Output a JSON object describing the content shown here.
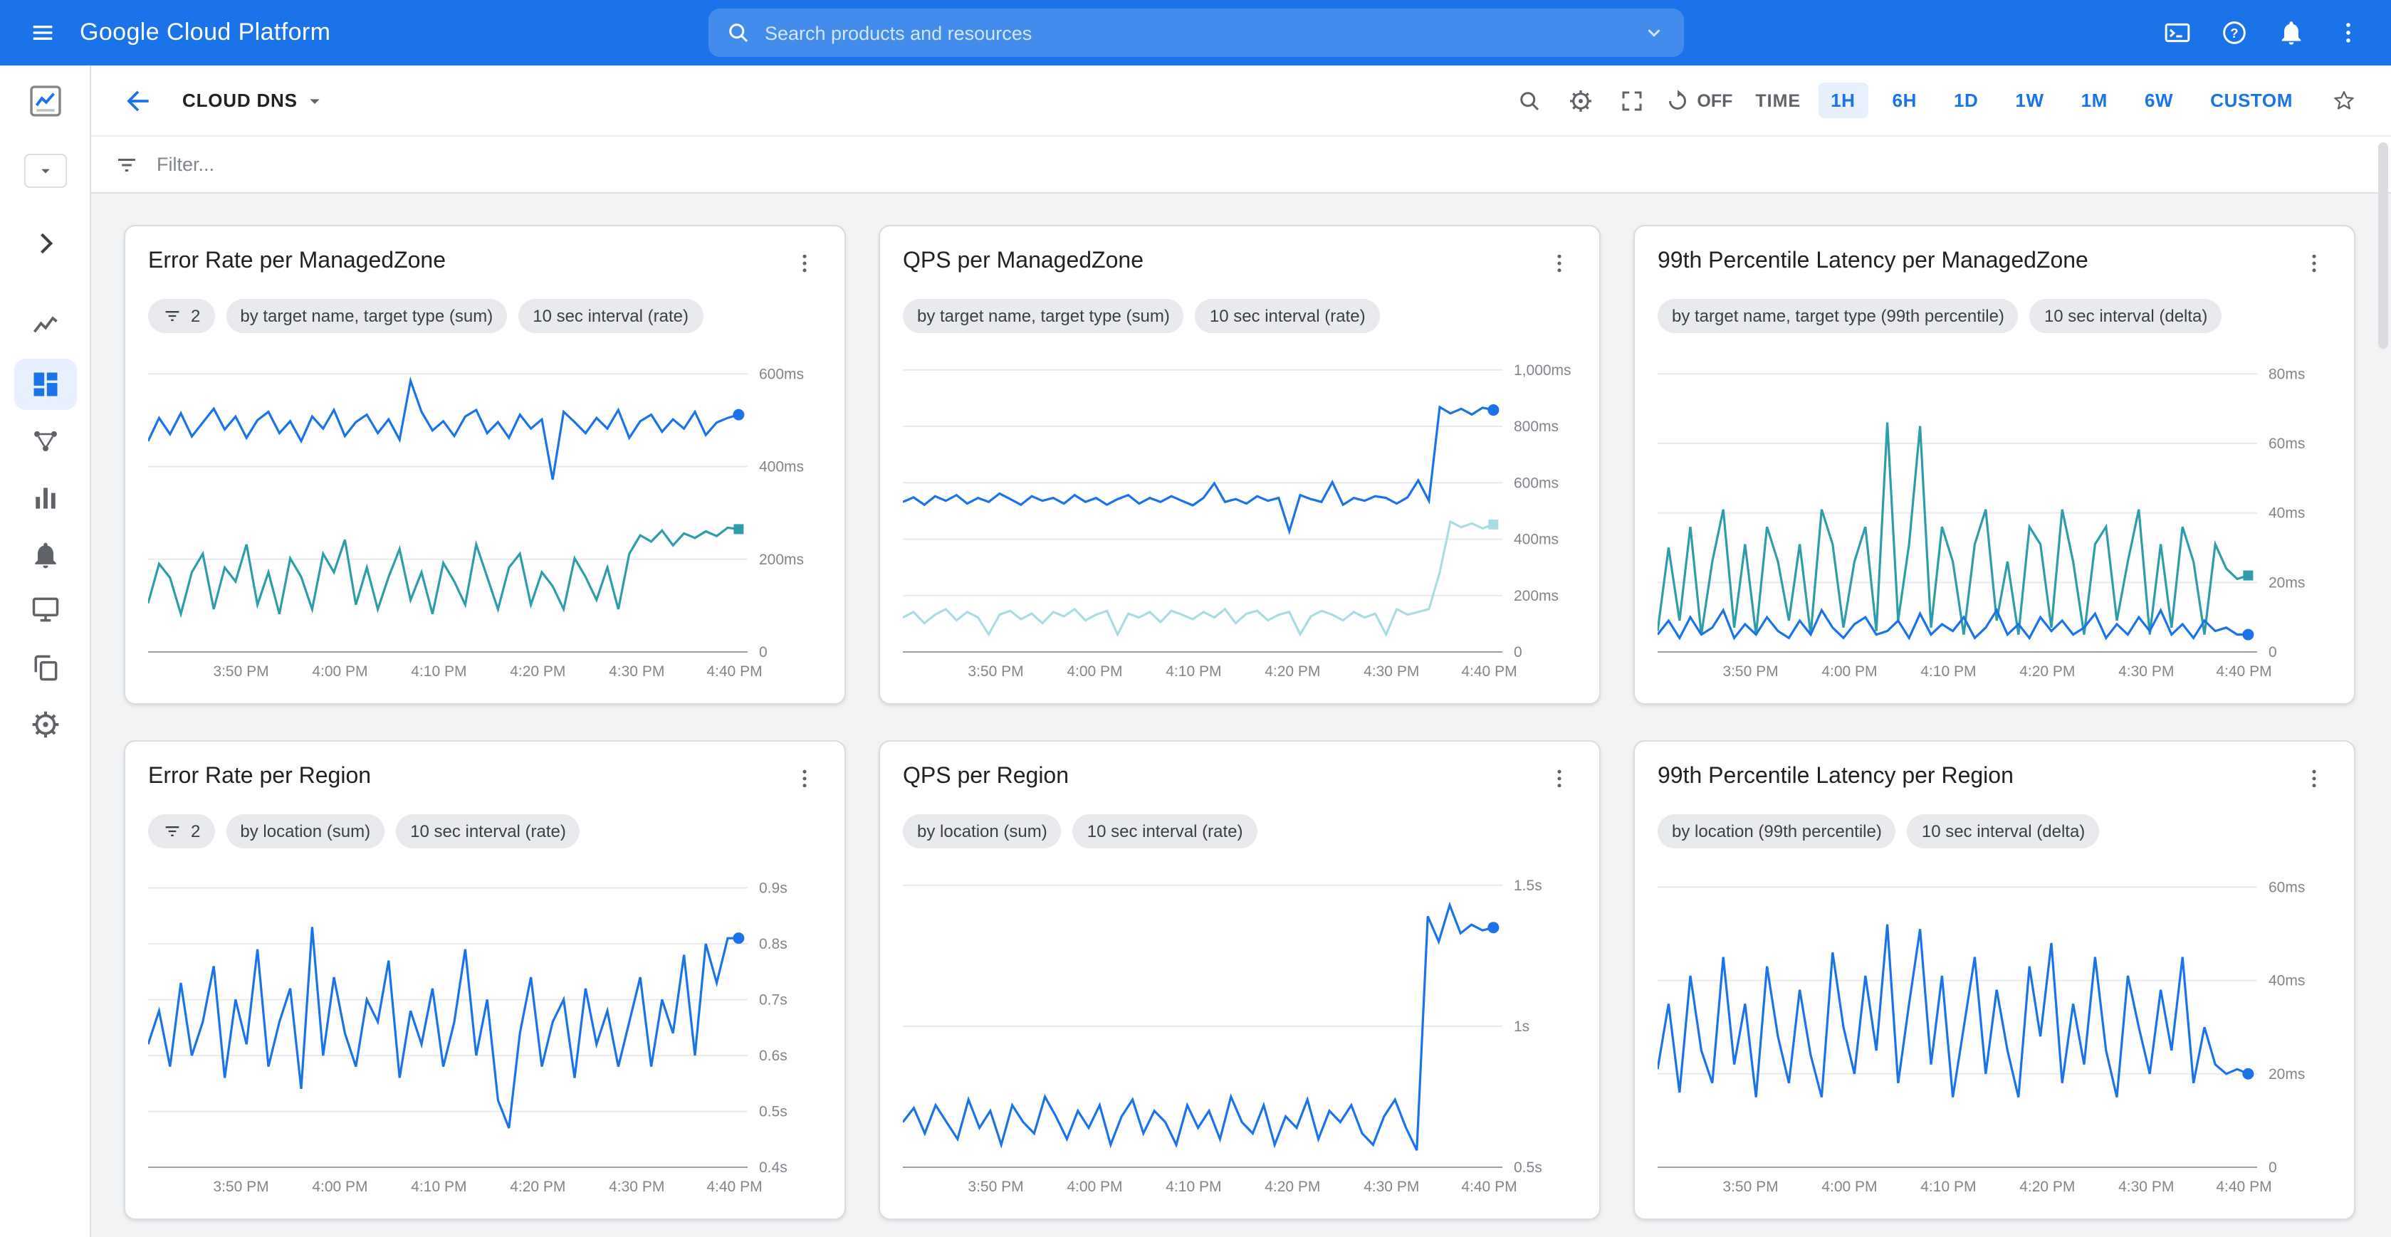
{
  "topbar": {
    "title": "Google Cloud Platform",
    "search_placeholder": "Search products and resources",
    "icons": [
      {
        "icon": "cloud-shell",
        "name": "cloud-shell-icon"
      },
      {
        "icon": "help",
        "name": "help-icon"
      },
      {
        "icon": "bell",
        "name": "notifications-icon"
      },
      {
        "icon": "kebab",
        "name": "more-options-icon"
      }
    ]
  },
  "header": {
    "breadcrumb": "CLOUD DNS",
    "icons": [
      {
        "icon": "search",
        "name": "search-charts-icon"
      },
      {
        "icon": "gear",
        "name": "dashboard-settings-icon"
      },
      {
        "icon": "fullscreen",
        "name": "fullscreen-icon"
      }
    ],
    "refresh_label": "OFF",
    "time_label": "TIME",
    "time_ranges": [
      "1H",
      "6H",
      "1D",
      "1W",
      "1M",
      "6W",
      "CUSTOM"
    ],
    "active_range": "1H"
  },
  "filter": {
    "placeholder": "Filter..."
  },
  "sidebar": {
    "items": [
      {
        "icon": "monitoring-logo",
        "name": "monitoring-logo",
        "interactable": false
      },
      {
        "icon": "caret-down",
        "name": "sidebar-scope-dropdown",
        "boxed": true
      },
      {
        "icon": "chevron-right",
        "name": "expand-nav-button"
      },
      {
        "icon": "line-chart",
        "name": "sidebar-item-metrics-explorer"
      },
      {
        "icon": "dashboard",
        "name": "sidebar-item-dashboards",
        "selected": true
      },
      {
        "icon": "hub",
        "name": "sidebar-item-services"
      },
      {
        "icon": "bar-chart",
        "name": "sidebar-item-reports"
      },
      {
        "icon": "bell",
        "name": "sidebar-item-alerting"
      },
      {
        "icon": "monitor",
        "name": "sidebar-item-uptime-checks"
      },
      {
        "icon": "copy",
        "name": "sidebar-item-groups"
      },
      {
        "icon": "gear",
        "name": "sidebar-item-settings"
      }
    ]
  },
  "colors": {
    "accent": "#1a73e8",
    "active_pill_bg": "#e8f0fe",
    "series_blue": "#1a73e8",
    "series_teal": "#2e9daa",
    "series_teal_light": "#aadde3"
  },
  "charts": [
    {
      "type": "line",
      "title": "Error Rate per ManagedZone",
      "chips": [
        {
          "icon": "filter-list",
          "label": "2"
        },
        {
          "label": "by target name, target type (sum)"
        },
        {
          "label": "10 sec interval (rate)"
        }
      ],
      "x_labels": [
        "3:50 PM",
        "4:00 PM",
        "4:10 PM",
        "4:20 PM",
        "4:30 PM",
        "4:40 PM"
      ],
      "ymin": 0,
      "ymax": 645,
      "yticks": [
        {
          "v": 600,
          "l": "600ms"
        },
        {
          "v": 400,
          "l": "400ms"
        },
        {
          "v": 200,
          "l": "200ms"
        },
        {
          "v": 0,
          "l": "0"
        }
      ],
      "series": [
        {
          "name": "teal",
          "color": "#2e9daa",
          "marker": "square",
          "values": [
            105,
            190,
            160,
            82,
            172,
            212,
            92,
            182,
            152,
            232,
            102,
            172,
            82,
            202,
            162,
            92,
            212,
            172,
            242,
            102,
            182,
            92,
            162,
            222,
            112,
            172,
            82,
            192,
            152,
            102,
            232,
            162,
            92,
            182,
            212,
            102,
            172,
            142,
            92,
            202,
            162,
            112,
            182,
            92,
            212,
            252,
            238,
            262,
            230,
            256,
            246,
            260,
            250,
            268,
            265
          ]
        },
        {
          "name": "blue",
          "color": "#1a73e8",
          "marker": "circle",
          "values": [
            455,
            505,
            470,
            515,
            465,
            495,
            525,
            480,
            508,
            462,
            500,
            518,
            472,
            498,
            455,
            508,
            482,
            522,
            466,
            496,
            512,
            472,
            502,
            458,
            585,
            518,
            478,
            498,
            466,
            508,
            522,
            472,
            496,
            462,
            512,
            482,
            502,
            372,
            518,
            496,
            472,
            505,
            482,
            522,
            462,
            498,
            512,
            475,
            502,
            482,
            518,
            468,
            495,
            505,
            512
          ]
        }
      ]
    },
    {
      "type": "line",
      "title": "QPS per ManagedZone",
      "chips": [
        {
          "label": "by target name, target type (sum)"
        },
        {
          "label": "10 sec interval (rate)"
        }
      ],
      "x_labels": [
        "3:50 PM",
        "4:00 PM",
        "4:10 PM",
        "4:20 PM",
        "4:30 PM",
        "4:40 PM"
      ],
      "ymin": 0,
      "ymax": 1060,
      "yticks": [
        {
          "v": 1000,
          "l": "1,000ms"
        },
        {
          "v": 800,
          "l": "800ms"
        },
        {
          "v": 600,
          "l": "600ms"
        },
        {
          "v": 400,
          "l": "400ms"
        },
        {
          "v": 200,
          "l": "200ms"
        },
        {
          "v": 0,
          "l": "0"
        }
      ],
      "series": [
        {
          "name": "teal-light",
          "color": "#aadde3",
          "marker": "square",
          "values": [
            122,
            142,
            102,
            132,
            152,
            112,
            142,
            122,
            62,
            132,
            146,
            116,
            136,
            102,
            142,
            126,
            152,
            112,
            132,
            146,
            62,
            136,
            122,
            142,
            106,
            146,
            132,
            116,
            142,
            122,
            152,
            102,
            136,
            146,
            112,
            132,
            142,
            62,
            126,
            146,
            132,
            112,
            142,
            122,
            136,
            62,
            152,
            132,
            142,
            152,
            282,
            462,
            442,
            456,
            438,
            452
          ]
        },
        {
          "name": "blue",
          "color": "#1a73e8",
          "marker": "circle",
          "values": [
            532,
            548,
            522,
            552,
            536,
            556,
            526,
            546,
            532,
            562,
            542,
            522,
            552,
            536,
            546,
            526,
            556,
            532,
            546,
            522,
            542,
            556,
            526,
            546,
            532,
            552,
            536,
            520,
            546,
            598,
            532,
            542,
            526,
            552,
            536,
            546,
            428,
            556,
            542,
            532,
            602,
            522,
            546,
            536,
            552,
            546,
            526,
            548,
            608,
            536,
            868,
            846,
            862,
            842,
            866,
            858
          ]
        }
      ]
    },
    {
      "type": "line",
      "title": "99th Percentile Latency per ManagedZone",
      "chips": [
        {
          "label": "by target name, target type (99th percentile)"
        },
        {
          "label": "10 sec interval (delta)"
        }
      ],
      "x_labels": [
        "3:50 PM",
        "4:00 PM",
        "4:10 PM",
        "4:20 PM",
        "4:30 PM",
        "4:40 PM"
      ],
      "ymin": 0,
      "ymax": 86,
      "yticks": [
        {
          "v": 80,
          "l": "80ms"
        },
        {
          "v": 60,
          "l": "60ms"
        },
        {
          "v": 40,
          "l": "40ms"
        },
        {
          "v": 20,
          "l": "20ms"
        },
        {
          "v": 0,
          "l": "0"
        }
      ],
      "series": [
        {
          "name": "teal",
          "color": "#2e9daa",
          "marker": "square",
          "values": [
            6,
            30,
            9,
            36,
            5,
            26,
            41,
            7,
            31,
            5,
            36,
            26,
            9,
            31,
            5,
            41,
            31,
            7,
            26,
            36,
            6,
            66,
            9,
            31,
            65,
            7,
            36,
            26,
            5,
            31,
            41,
            9,
            26,
            5,
            36,
            31,
            7,
            41,
            26,
            5,
            31,
            36,
            9,
            26,
            41,
            5,
            31,
            7,
            36,
            26,
            5,
            31,
            24,
            21,
            22
          ]
        },
        {
          "name": "blue",
          "color": "#1a73e8",
          "marker": "circle",
          "values": [
            5,
            9,
            4,
            10,
            5,
            7,
            12,
            4,
            8,
            5,
            10,
            6,
            4,
            9,
            5,
            12,
            7,
            4,
            8,
            10,
            5,
            6,
            9,
            4,
            11,
            5,
            8,
            6,
            10,
            4,
            7,
            12,
            5,
            8,
            4,
            10,
            6,
            9,
            5,
            7,
            11,
            4,
            8,
            5,
            10,
            6,
            12,
            5,
            8,
            4,
            9,
            6,
            7,
            5,
            5
          ]
        }
      ]
    },
    {
      "type": "line",
      "title": "Error Rate per Region",
      "chips": [
        {
          "icon": "filter-list",
          "label": "2"
        },
        {
          "label": "by location (sum)"
        },
        {
          "label": "10 sec interval (rate)"
        }
      ],
      "x_labels": [
        "3:50 PM",
        "4:00 PM",
        "4:10 PM",
        "4:20 PM",
        "4:30 PM",
        "4:40 PM"
      ],
      "ymin": 0.4,
      "ymax": 0.935,
      "yticks": [
        {
          "v": 0.9,
          "l": "0.9s"
        },
        {
          "v": 0.8,
          "l": "0.8s"
        },
        {
          "v": 0.7,
          "l": "0.7s"
        },
        {
          "v": 0.6,
          "l": "0.6s"
        },
        {
          "v": 0.5,
          "l": "0.5s"
        },
        {
          "v": 0.4,
          "l": "0.4s"
        }
      ],
      "series": [
        {
          "name": "blue",
          "color": "#1a73e8",
          "marker": "circle",
          "values": [
            0.62,
            0.68,
            0.58,
            0.73,
            0.6,
            0.66,
            0.76,
            0.56,
            0.7,
            0.62,
            0.79,
            0.58,
            0.66,
            0.72,
            0.54,
            0.83,
            0.6,
            0.74,
            0.64,
            0.58,
            0.7,
            0.66,
            0.77,
            0.56,
            0.68,
            0.62,
            0.72,
            0.58,
            0.66,
            0.79,
            0.6,
            0.7,
            0.52,
            0.47,
            0.64,
            0.74,
            0.58,
            0.66,
            0.7,
            0.56,
            0.72,
            0.62,
            0.68,
            0.58,
            0.66,
            0.74,
            0.58,
            0.7,
            0.64,
            0.78,
            0.6,
            0.8,
            0.73,
            0.81,
            0.81
          ]
        }
      ]
    },
    {
      "type": "line",
      "title": "QPS per Region",
      "chips": [
        {
          "label": "by location (sum)"
        },
        {
          "label": "10 sec interval (rate)"
        }
      ],
      "x_labels": [
        "3:50 PM",
        "4:00 PM",
        "4:10 PM",
        "4:20 PM",
        "4:30 PM",
        "4:40 PM"
      ],
      "ymin": 0.5,
      "ymax": 1.56,
      "yticks": [
        {
          "v": 1.5,
          "l": "1.5s"
        },
        {
          "v": 1,
          "l": "1s"
        },
        {
          "v": 0.5,
          "l": "0.5s"
        }
      ],
      "series": [
        {
          "name": "blue",
          "color": "#1a73e8",
          "marker": "circle",
          "values": [
            0.66,
            0.71,
            0.62,
            0.72,
            0.66,
            0.6,
            0.74,
            0.64,
            0.7,
            0.58,
            0.72,
            0.66,
            0.62,
            0.75,
            0.68,
            0.6,
            0.7,
            0.64,
            0.72,
            0.58,
            0.68,
            0.74,
            0.62,
            0.7,
            0.66,
            0.58,
            0.72,
            0.64,
            0.7,
            0.6,
            0.75,
            0.66,
            0.62,
            0.72,
            0.58,
            0.68,
            0.64,
            0.74,
            0.6,
            0.7,
            0.66,
            0.72,
            0.62,
            0.58,
            0.68,
            0.74,
            0.64,
            0.56,
            1.39,
            1.3,
            1.43,
            1.33,
            1.36,
            1.34,
            1.35
          ]
        }
      ]
    },
    {
      "type": "line",
      "title": "99th Percentile Latency per Region",
      "chips": [
        {
          "label": "by location (99th percentile)"
        },
        {
          "label": "10 sec interval (delta)"
        }
      ],
      "x_labels": [
        "3:50 PM",
        "4:00 PM",
        "4:10 PM",
        "4:20 PM",
        "4:30 PM",
        "4:40 PM"
      ],
      "ymin": 0,
      "ymax": 64,
      "yticks": [
        {
          "v": 60,
          "l": "60ms"
        },
        {
          "v": 40,
          "l": "40ms"
        },
        {
          "v": 20,
          "l": "20ms"
        },
        {
          "v": 0,
          "l": "0"
        }
      ],
      "series": [
        {
          "name": "blue",
          "color": "#1a73e8",
          "marker": "circle",
          "values": [
            21,
            35,
            16,
            41,
            25,
            18,
            45,
            22,
            35,
            15,
            43,
            28,
            18,
            38,
            24,
            15,
            46,
            30,
            20,
            41,
            25,
            52,
            18,
            35,
            51,
            22,
            41,
            15,
            30,
            45,
            20,
            38,
            25,
            15,
            43,
            28,
            48,
            18,
            35,
            22,
            45,
            25,
            15,
            41,
            30,
            20,
            38,
            25,
            45,
            18,
            30,
            22,
            20,
            21,
            20
          ]
        }
      ]
    }
  ]
}
